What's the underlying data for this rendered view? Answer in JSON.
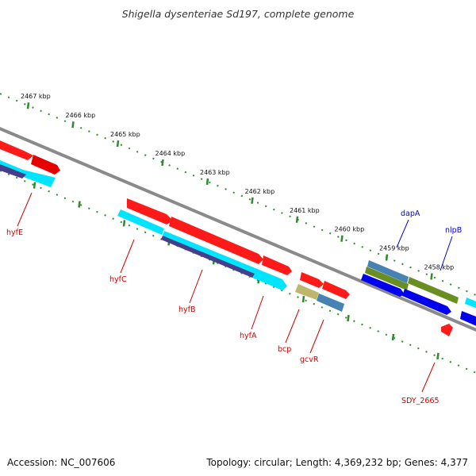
{
  "title": "Shigella dysenteriae Sd197, complete genome",
  "footer": {
    "accession": "Accession: NC_007606",
    "topology": "Topology: circular; Length: 4,369,232 bp; Genes: 4,377"
  },
  "colors": {
    "backbone": "#8a8a8a",
    "ruler": "#2e8b2e",
    "tick_text": "#111111",
    "label_red": "#cc0000",
    "label_blue": "#0000cc"
  },
  "ticks": [
    "2467 kbp",
    "2466 kbp",
    "2465 kbp",
    "2464 kbp",
    "2463 kbp",
    "2462 kbp",
    "2461 kbp",
    "2460 kbp",
    "2459 kbp",
    "2458 kbp"
  ],
  "genes": [
    {
      "name": "hyfE",
      "color": "red"
    },
    {
      "name": "hyfC",
      "color": "red"
    },
    {
      "name": "hyfB",
      "color": "red"
    },
    {
      "name": "hyfA",
      "color": "red"
    },
    {
      "name": "bcp",
      "color": "red"
    },
    {
      "name": "gcvR",
      "color": "red"
    },
    {
      "name": "SDY_2665",
      "color": "red"
    },
    {
      "name": "dapA",
      "color": "blue"
    },
    {
      "name": "nlpB",
      "color": "blue"
    }
  ]
}
